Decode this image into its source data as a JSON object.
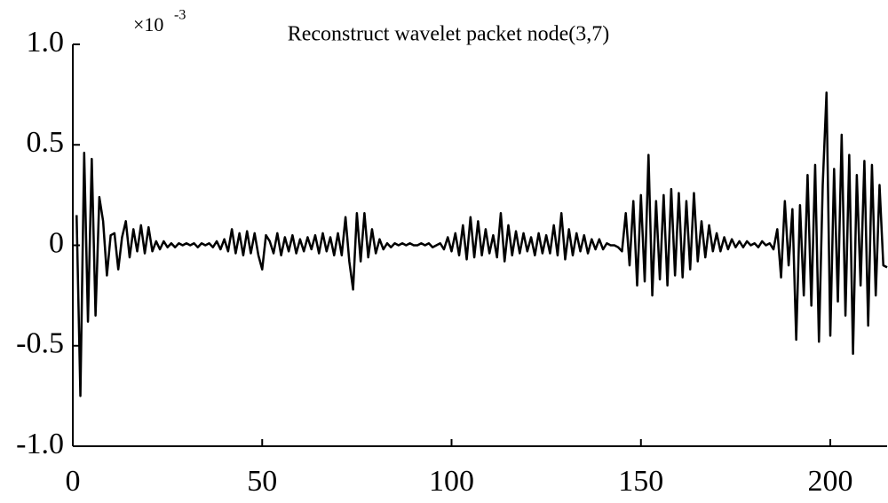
{
  "chart_data": {
    "type": "line",
    "title": "Reconstruct wavelet packet node(3,7)",
    "multiplier": "×10",
    "multiplier_exponent": "-3",
    "x": [
      1,
      2,
      3,
      4,
      5,
      6,
      7,
      8,
      9,
      10,
      11,
      12,
      13,
      14,
      15,
      16,
      17,
      18,
      19,
      20,
      21,
      22,
      23,
      24,
      25,
      26,
      27,
      28,
      29,
      30,
      31,
      32,
      33,
      34,
      35,
      36,
      37,
      38,
      39,
      40,
      41,
      42,
      43,
      44,
      45,
      46,
      47,
      48,
      49,
      50,
      51,
      52,
      53,
      54,
      55,
      56,
      57,
      58,
      59,
      60,
      61,
      62,
      63,
      64,
      65,
      66,
      67,
      68,
      69,
      70,
      71,
      72,
      73,
      74,
      75,
      76,
      77,
      78,
      79,
      80,
      81,
      82,
      83,
      84,
      85,
      86,
      87,
      88,
      89,
      90,
      91,
      92,
      93,
      94,
      95,
      96,
      97,
      98,
      99,
      100,
      101,
      102,
      103,
      104,
      105,
      106,
      107,
      108,
      109,
      110,
      111,
      112,
      113,
      114,
      115,
      116,
      117,
      118,
      119,
      120,
      121,
      122,
      123,
      124,
      125,
      126,
      127,
      128,
      129,
      130,
      131,
      132,
      133,
      134,
      135,
      136,
      137,
      138,
      139,
      140,
      141,
      142,
      143,
      144,
      145,
      146,
      147,
      148,
      149,
      150,
      151,
      152,
      153,
      154,
      155,
      156,
      157,
      158,
      159,
      160,
      161,
      162,
      163,
      164,
      165,
      166,
      167,
      168,
      169,
      170,
      171,
      172,
      173,
      174,
      175,
      176,
      177,
      178,
      179,
      180,
      181,
      182,
      183,
      184,
      185,
      186,
      187,
      188,
      189,
      190,
      191,
      192,
      193,
      194,
      195,
      196,
      197,
      198,
      199,
      200,
      201,
      202,
      203,
      204,
      205,
      206,
      207,
      208,
      209,
      210,
      211,
      212,
      213,
      214,
      215
    ],
    "values": [
      0.15,
      -0.75,
      0.46,
      -0.38,
      0.43,
      -0.35,
      0.24,
      0.12,
      -0.15,
      0.05,
      0.06,
      -0.12,
      0.04,
      0.12,
      -0.06,
      0.08,
      -0.03,
      0.1,
      -0.04,
      0.09,
      -0.03,
      0.02,
      -0.02,
      0.02,
      -0.01,
      0.01,
      -0.01,
      0.01,
      0.0,
      0.01,
      0.0,
      0.01,
      -0.01,
      0.01,
      0.0,
      0.01,
      -0.01,
      0.02,
      -0.02,
      0.03,
      -0.03,
      0.08,
      -0.04,
      0.06,
      -0.05,
      0.07,
      -0.04,
      0.06,
      -0.05,
      -0.12,
      0.05,
      0.02,
      -0.04,
      0.06,
      -0.05,
      0.04,
      -0.03,
      0.05,
      -0.04,
      0.03,
      -0.03,
      0.04,
      -0.02,
      0.05,
      -0.04,
      0.06,
      -0.03,
      0.04,
      -0.05,
      0.06,
      -0.05,
      0.14,
      -0.08,
      -0.22,
      0.16,
      -0.08,
      0.16,
      -0.06,
      0.08,
      -0.04,
      0.03,
      -0.02,
      0.01,
      -0.01,
      0.01,
      0.0,
      0.01,
      0.0,
      0.01,
      0.0,
      0.0,
      0.01,
      0.0,
      0.01,
      -0.01,
      0.0,
      0.01,
      -0.02,
      0.04,
      -0.03,
      0.06,
      -0.05,
      0.1,
      -0.07,
      0.14,
      -0.06,
      0.12,
      -0.05,
      0.08,
      -0.04,
      0.05,
      -0.06,
      0.16,
      -0.08,
      0.1,
      -0.05,
      0.07,
      -0.04,
      0.06,
      -0.03,
      0.04,
      -0.05,
      0.06,
      -0.04,
      0.05,
      -0.04,
      0.1,
      -0.05,
      0.16,
      -0.07,
      0.08,
      -0.05,
      0.06,
      -0.03,
      0.05,
      -0.04,
      0.03,
      -0.02,
      0.03,
      -0.02,
      0.01,
      0.0,
      0.0,
      -0.01,
      -0.03,
      0.16,
      -0.1,
      0.22,
      -0.2,
      0.25,
      -0.18,
      0.45,
      -0.25,
      0.22,
      -0.17,
      0.25,
      -0.2,
      0.28,
      -0.15,
      0.26,
      -0.16,
      0.22,
      -0.12,
      0.26,
      -0.08,
      0.12,
      -0.06,
      0.1,
      -0.03,
      0.06,
      -0.03,
      0.04,
      -0.02,
      0.03,
      -0.01,
      0.02,
      -0.01,
      0.02,
      0.0,
      0.01,
      -0.01,
      0.02,
      0.0,
      0.01,
      -0.02,
      0.08,
      -0.16,
      0.22,
      -0.1,
      0.18,
      -0.47,
      0.2,
      -0.25,
      0.35,
      -0.3,
      0.4,
      -0.48,
      0.3,
      0.76,
      -0.45,
      0.38,
      -0.28,
      0.55,
      -0.35,
      0.45,
      -0.54,
      0.35,
      -0.2,
      0.42,
      -0.4,
      0.4,
      -0.25,
      0.3,
      -0.1,
      -0.11
    ],
    "color": "#000000",
    "xlim": [
      0,
      215
    ],
    "xticks": [
      0,
      50,
      100,
      150,
      200
    ],
    "ylim": [
      -1,
      1
    ],
    "yticks": [
      {
        "value": -1,
        "label": "-1.0"
      },
      -0.5,
      0,
      0.5,
      {
        "value": 1,
        "label": "1.0"
      }
    ],
    "grid": false
  }
}
